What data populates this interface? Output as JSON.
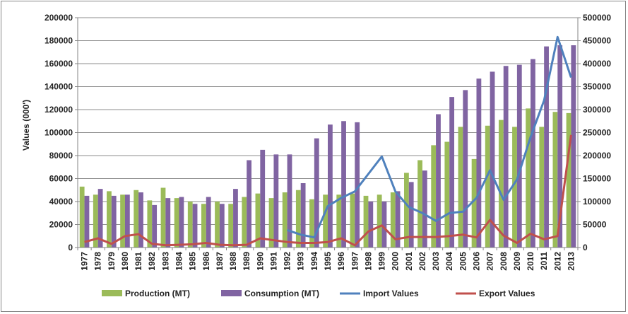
{
  "chart_data": {
    "type": "bar",
    "title": "",
    "xlabel": "",
    "ylabel": "Values (000')",
    "ylim": [
      0,
      200000
    ],
    "y2lim": [
      0,
      500000
    ],
    "y_ticks": [
      0,
      20000,
      40000,
      60000,
      80000,
      100000,
      120000,
      140000,
      160000,
      180000,
      200000
    ],
    "y2_ticks": [
      0,
      50000,
      100000,
      150000,
      200000,
      250000,
      300000,
      350000,
      400000,
      450000,
      500000
    ],
    "grid": true,
    "legend_position": "bottom",
    "categories": [
      "1977",
      "1978",
      "1979",
      "1980",
      "1981",
      "1982",
      "1983",
      "1984",
      "1985",
      "1986",
      "1987",
      "1988",
      "1989",
      "1990",
      "1991",
      "1992",
      "1993",
      "1994",
      "1995",
      "1996",
      "1997",
      "1998",
      "1999",
      "2000",
      "2001",
      "2002",
      "2003",
      "2004",
      "2005",
      "2006",
      "2007",
      "2008",
      "2009",
      "2010",
      "2011",
      "2012",
      "2013"
    ],
    "series": [
      {
        "name": "Production (MT)",
        "kind": "bar",
        "axis": "left",
        "color": "#9BBB59",
        "values": [
          53000,
          46000,
          49000,
          46000,
          50000,
          41000,
          52000,
          43000,
          40000,
          38000,
          40000,
          38000,
          44000,
          47000,
          43000,
          48000,
          50000,
          42000,
          46000,
          46000,
          47000,
          45000,
          46000,
          48000,
          65000,
          76000,
          89000,
          92000,
          105000,
          77000,
          106000,
          111000,
          105000,
          121000,
          105000,
          118000,
          117000
        ]
      },
      {
        "name": "Consumption (MT)",
        "kind": "bar",
        "axis": "left",
        "color": "#8064A2",
        "values": [
          45000,
          51000,
          45000,
          46000,
          48000,
          37000,
          43000,
          44000,
          38000,
          44000,
          38000,
          51000,
          76000,
          85000,
          81000,
          81000,
          56000,
          95000,
          107000,
          110000,
          109000,
          40000,
          40000,
          49000,
          57000,
          67000,
          116000,
          131000,
          137000,
          147000,
          153000,
          158000,
          159000,
          164000,
          175000,
          176000,
          176000
        ]
      },
      {
        "name": "Import Values",
        "kind": "line",
        "axis": "right",
        "color": "#4F81BD",
        "values": [
          null,
          null,
          null,
          null,
          null,
          null,
          null,
          null,
          null,
          null,
          null,
          null,
          null,
          null,
          null,
          38000,
          28000,
          22000,
          90000,
          108000,
          122000,
          160000,
          198000,
          122000,
          88000,
          75000,
          58000,
          75000,
          78000,
          108000,
          168000,
          104000,
          148000,
          240000,
          320000,
          458000,
          370000
        ]
      },
      {
        "name": "Export Values",
        "kind": "line",
        "axis": "right",
        "color": "#C0504D",
        "values": [
          12000,
          20000,
          8000,
          25000,
          29000,
          8000,
          5000,
          6000,
          7000,
          10000,
          6000,
          5000,
          6000,
          20000,
          16000,
          12000,
          10000,
          10000,
          12000,
          20000,
          5000,
          35000,
          48000,
          18000,
          23000,
          23000,
          23000,
          25000,
          28000,
          22000,
          60000,
          26000,
          10000,
          30000,
          18000,
          25000,
          245000
        ]
      }
    ]
  }
}
